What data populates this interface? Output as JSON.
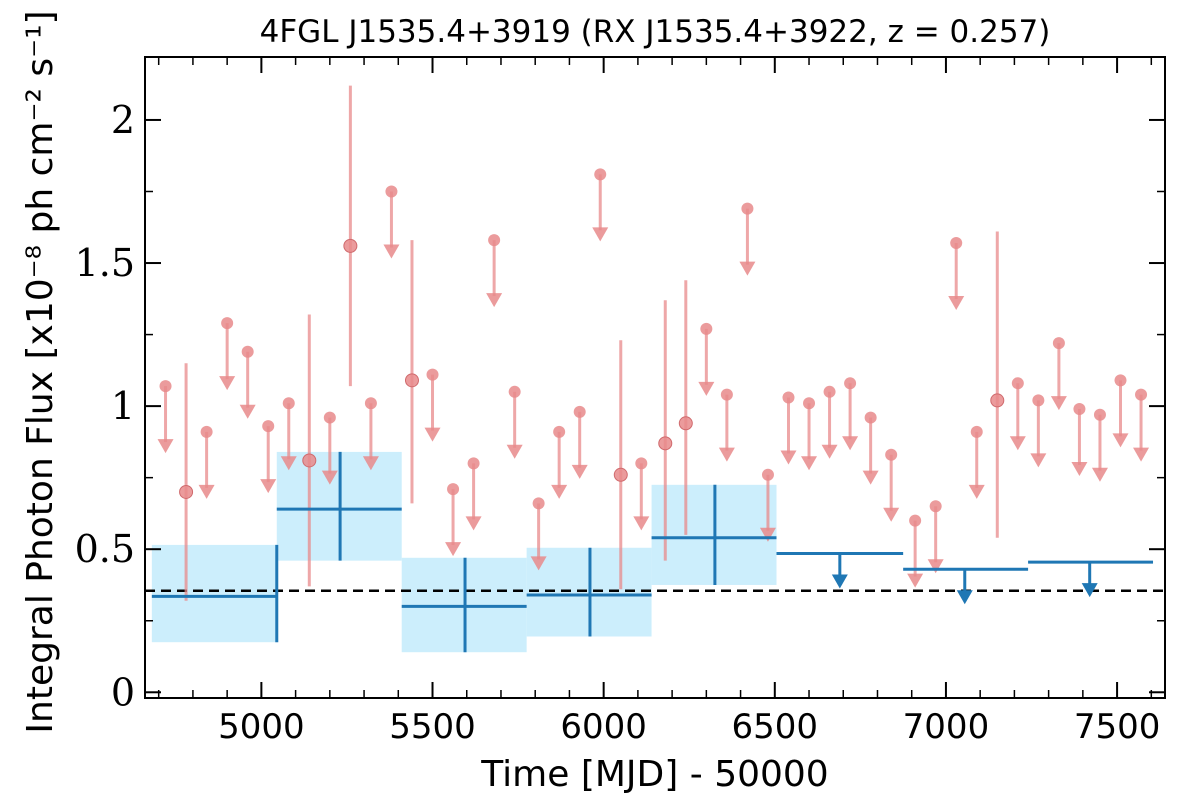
{
  "chart_data": {
    "type": "scatter",
    "title": "4FGL J1535.4+3919 (RX J1535.4+3922, z = 0.257)",
    "xlabel": "Time [MJD] - 50000",
    "ylabel": "Integral Photon Flux [x10⁻⁸ ph cm⁻² s⁻¹]",
    "xlim": [
      4660,
      7640
    ],
    "ylim": [
      -0.02,
      2.22
    ],
    "x_ticks": [
      5000,
      5500,
      6000,
      6500,
      7000,
      7500
    ],
    "x_tick_labels": [
      "5000",
      "5500",
      "6000",
      "6500",
      "7000",
      "7500"
    ],
    "y_ticks": [
      0,
      0.5,
      1,
      1.5,
      2
    ],
    "y_tick_labels": [
      "0",
      "0.5",
      "1",
      "1.5",
      "2"
    ],
    "reference_line": 0.355,
    "colors": {
      "short_bins": "#e8898b",
      "long_bins": "#1f77b4",
      "long_band": "#cceefc",
      "reference": "#000000"
    },
    "short_bins": {
      "half_width": 30,
      "detections": [
        {
          "x": 4780,
          "y": 0.7,
          "ylo": 0.32,
          "yhi": 1.15
        },
        {
          "x": 5140,
          "y": 0.81,
          "ylo": 0.37,
          "yhi": 1.32
        },
        {
          "x": 5260,
          "y": 1.56,
          "ylo": 1.07,
          "yhi": 2.12
        },
        {
          "x": 5440,
          "y": 1.09,
          "ylo": 0.66,
          "yhi": 1.58
        },
        {
          "x": 6050,
          "y": 0.76,
          "ylo": 0.36,
          "yhi": 1.23
        },
        {
          "x": 6180,
          "y": 0.87,
          "ylo": 0.46,
          "yhi": 1.37
        },
        {
          "x": 6240,
          "y": 0.94,
          "ylo": 0.55,
          "yhi": 1.44
        },
        {
          "x": 7150,
          "y": 1.02,
          "ylo": 0.54,
          "yhi": 1.61
        }
      ],
      "upper_limits": [
        {
          "x": 4720,
          "y": 1.07
        },
        {
          "x": 4840,
          "y": 0.91
        },
        {
          "x": 4900,
          "y": 1.29
        },
        {
          "x": 4960,
          "y": 1.19
        },
        {
          "x": 5020,
          "y": 0.93
        },
        {
          "x": 5080,
          "y": 1.01
        },
        {
          "x": 5200,
          "y": 0.96
        },
        {
          "x": 5320,
          "y": 1.01
        },
        {
          "x": 5380,
          "y": 1.75
        },
        {
          "x": 5500,
          "y": 1.11
        },
        {
          "x": 5560,
          "y": 0.71
        },
        {
          "x": 5620,
          "y": 0.8
        },
        {
          "x": 5680,
          "y": 1.58
        },
        {
          "x": 5740,
          "y": 1.05
        },
        {
          "x": 5810,
          "y": 0.66
        },
        {
          "x": 5870,
          "y": 0.91
        },
        {
          "x": 5930,
          "y": 0.98
        },
        {
          "x": 5990,
          "y": 1.81
        },
        {
          "x": 6110,
          "y": 0.8
        },
        {
          "x": 6300,
          "y": 1.27
        },
        {
          "x": 6360,
          "y": 1.04
        },
        {
          "x": 6420,
          "y": 1.69
        },
        {
          "x": 6480,
          "y": 0.76
        },
        {
          "x": 6540,
          "y": 1.03
        },
        {
          "x": 6600,
          "y": 1.01
        },
        {
          "x": 6660,
          "y": 1.05
        },
        {
          "x": 6720,
          "y": 1.08
        },
        {
          "x": 6780,
          "y": 0.96
        },
        {
          "x": 6840,
          "y": 0.83
        },
        {
          "x": 6910,
          "y": 0.6
        },
        {
          "x": 6970,
          "y": 0.65
        },
        {
          "x": 7030,
          "y": 1.57
        },
        {
          "x": 7090,
          "y": 0.91
        },
        {
          "x": 7210,
          "y": 1.08
        },
        {
          "x": 7270,
          "y": 1.02
        },
        {
          "x": 7330,
          "y": 1.22
        },
        {
          "x": 7390,
          "y": 0.99
        },
        {
          "x": 7450,
          "y": 0.97
        },
        {
          "x": 7510,
          "y": 1.09
        },
        {
          "x": 7570,
          "y": 1.04
        }
      ]
    },
    "long_bins": {
      "detections": [
        {
          "x": 5045,
          "x0": 4680,
          "x1": 5045,
          "y": 0.335,
          "ylo": 0.175,
          "yhi": 0.515
        },
        {
          "x": 5230,
          "x0": 5045,
          "x1": 5410,
          "y": 0.64,
          "ylo": 0.46,
          "yhi": 0.84
        },
        {
          "x": 5595,
          "x0": 5410,
          "x1": 5775,
          "y": 0.3,
          "ylo": 0.14,
          "yhi": 0.47
        },
        {
          "x": 5960,
          "x0": 5775,
          "x1": 6140,
          "y": 0.34,
          "ylo": 0.195,
          "yhi": 0.505
        },
        {
          "x": 6325,
          "x0": 6140,
          "x1": 6505,
          "y": 0.54,
          "ylo": 0.375,
          "yhi": 0.725
        }
      ],
      "upper_limits": [
        {
          "x": 6690,
          "x0": 6505,
          "x1": 6875,
          "y": 0.485
        },
        {
          "x": 7055,
          "x0": 6875,
          "x1": 7240,
          "y": 0.43
        },
        {
          "x": 7420,
          "x0": 7240,
          "x1": 7605,
          "y": 0.455
        }
      ]
    }
  }
}
